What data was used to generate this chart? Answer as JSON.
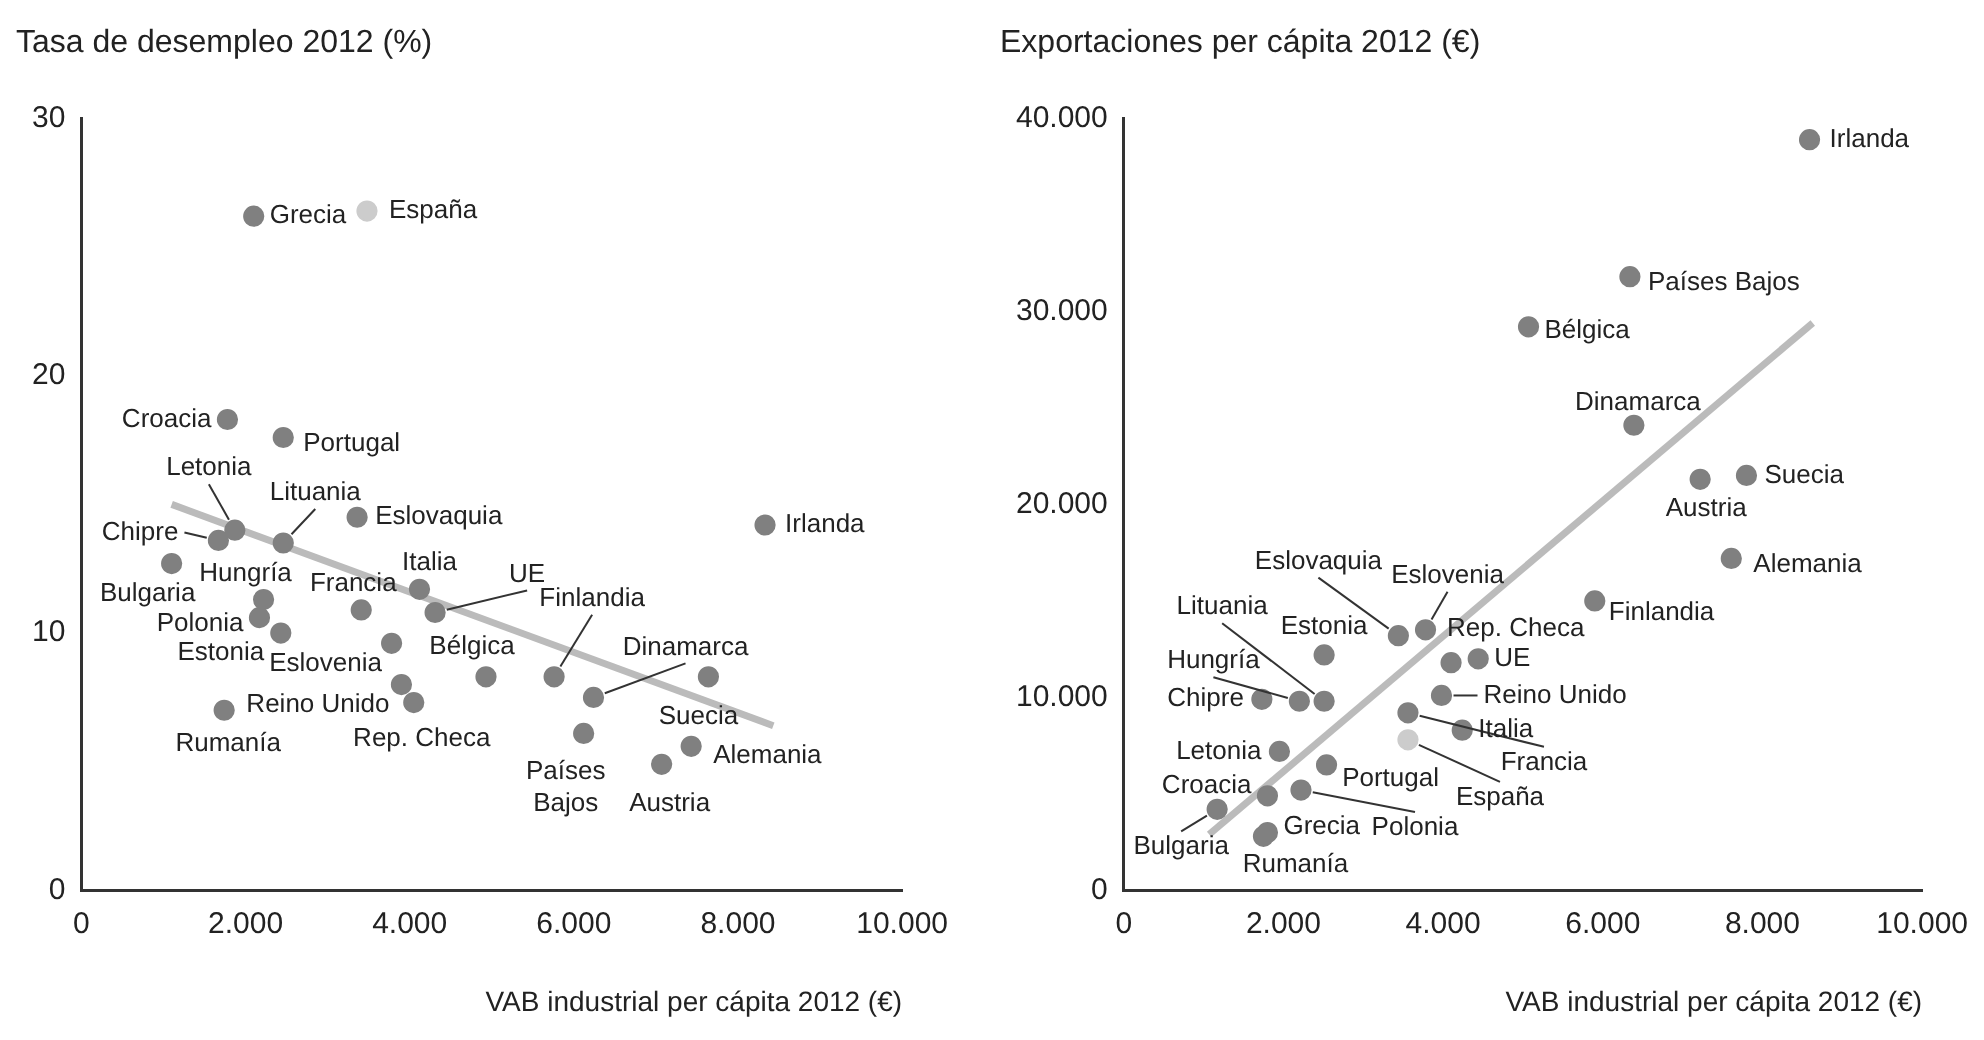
{
  "chart_data": [
    {
      "type": "scatter",
      "title": "Tasa de desempleo 2012 (%)",
      "xlabel": "VAB industrial per cápita 2012 (€)",
      "xlim": [
        0,
        10000
      ],
      "xticks": [
        0,
        {
          "value": 2000,
          "label": "2.000"
        },
        {
          "value": 4000,
          "label": "4.000"
        },
        {
          "value": 6000,
          "label": "6.000"
        },
        {
          "value": 8000,
          "label": "8.000"
        },
        {
          "value": 10000,
          "label": "10.000"
        }
      ],
      "ylim": [
        0,
        30
      ],
      "yticks": [
        0,
        10,
        20,
        30
      ],
      "grid": false,
      "legend": false,
      "marker": "circle",
      "series": [
        {
          "color": "#808080",
          "x": [
            2100,
            1780,
            2460,
            1870,
            1670,
            2460,
            3360,
            8330,
            1100,
            2220,
            2170,
            2430,
            3410,
            4120,
            4310,
            3780,
            4930,
            5760,
            6240,
            7640,
            7430,
            7070,
            6120,
            3900,
            4050,
            1740
          ],
          "values": [
            26.2,
            18.3,
            17.6,
            14.0,
            13.6,
            13.5,
            14.5,
            14.2,
            12.7,
            11.3,
            10.6,
            10.0,
            10.9,
            11.7,
            10.8,
            9.6,
            8.3,
            8.3,
            7.5,
            8.3,
            5.6,
            4.9,
            6.1,
            8.0,
            7.3,
            7.0
          ]
        },
        {
          "color": "#cccccc",
          "x": [
            3480
          ],
          "values": [
            26.4
          ]
        },
        {
          "type": "line",
          "marker": "none",
          "color": "#bbbbbb",
          "x": [
            1100,
            8430
          ],
          "values": [
            15.0,
            6.4
          ]
        }
      ],
      "annotations": [
        {
          "text": "Grecia",
          "x": 2100,
          "y": 26.2
        },
        {
          "text": "España",
          "x": 3480,
          "y": 26.4
        },
        {
          "text": "Croacia",
          "x": 1780,
          "y": 18.3
        },
        {
          "text": "Portugal",
          "x": 2460,
          "y": 17.6
        },
        {
          "text": "Letonia",
          "x": 1870,
          "y": 14.0
        },
        {
          "text": "Chipre",
          "x": 1670,
          "y": 13.6
        },
        {
          "text": "Lituania",
          "x": 2460,
          "y": 13.5
        },
        {
          "text": "Eslovaquia",
          "x": 3360,
          "y": 14.5
        },
        {
          "text": "Irlanda",
          "x": 8330,
          "y": 14.2
        },
        {
          "text": "Bulgaria",
          "x": 1100,
          "y": 12.7
        },
        {
          "text": "Hungría",
          "x": 2220,
          "y": 11.3
        },
        {
          "text": "Polonia",
          "x": 2170,
          "y": 10.6
        },
        {
          "text": "Estonia",
          "x": 2430,
          "y": 10.0
        },
        {
          "text": "Francia",
          "x": 3410,
          "y": 10.9
        },
        {
          "text": "Italia",
          "x": 4120,
          "y": 11.7
        },
        {
          "text": "UE",
          "x": 4310,
          "y": 10.8
        },
        {
          "text": "Eslovenia",
          "x": 3780,
          "y": 9.6
        },
        {
          "text": "Bélgica",
          "x": 4930,
          "y": 8.3
        },
        {
          "text": "Finlandia",
          "x": 5760,
          "y": 8.3
        },
        {
          "text": "Dinamarca",
          "x": 6240,
          "y": 7.5
        },
        {
          "text": "Suecia",
          "x": 7640,
          "y": 8.3
        },
        {
          "text": "Alemania",
          "x": 7430,
          "y": 5.6
        },
        {
          "text": "Austria",
          "x": 7070,
          "y": 4.9
        },
        {
          "text": "Países Bajos",
          "x": 6120,
          "y": 6.1
        },
        {
          "text": "Reino Unido",
          "x": 3900,
          "y": 8.0
        },
        {
          "text": "Rep. Checa",
          "x": 4050,
          "y": 7.3
        },
        {
          "text": "Rumanía",
          "x": 1740,
          "y": 7.0
        }
      ]
    },
    {
      "type": "scatter",
      "title": "Exportaciones per cápita 2012 (€)",
      "xlabel": "VAB industrial per cápita 2012 (€)",
      "xlim": [
        0,
        10000
      ],
      "xticks": [
        0,
        {
          "value": 2000,
          "label": "2.000"
        },
        {
          "value": 4000,
          "label": "4.000"
        },
        {
          "value": 6000,
          "label": "6.000"
        },
        {
          "value": 8000,
          "label": "8.000"
        },
        {
          "value": 10000,
          "label": "10.000"
        }
      ],
      "ylim": [
        0,
        40000
      ],
      "yticks": [
        0,
        {
          "value": 10000,
          "label": "10.000"
        },
        {
          "value": 20000,
          "label": "20.000"
        },
        {
          "value": 30000,
          "label": "30.000"
        },
        {
          "value": 40000,
          "label": "40.000"
        }
      ],
      "grid": false,
      "legend": false,
      "marker": "circle",
      "series": [
        {
          "color": "#808080",
          "x": [
            8590,
            6340,
            5070,
            6390,
            7220,
            7800,
            7610,
            5900,
            3440,
            3780,
            4100,
            4440,
            2510,
            2200,
            2510,
            1730,
            3980,
            3560,
            4240,
            1950,
            2540,
            2220,
            1800,
            1170,
            1800,
            1750
          ],
          "values": [
            38900,
            31800,
            29200,
            24100,
            21300,
            21500,
            17200,
            15000,
            13200,
            13500,
            11800,
            12000,
            12200,
            9800,
            9800,
            9900,
            10100,
            9200,
            8300,
            7200,
            6500,
            5200,
            4900,
            4200,
            3000,
            2800
          ]
        },
        {
          "color": "#cccccc",
          "x": [
            3560
          ],
          "values": [
            7800
          ]
        },
        {
          "type": "line",
          "marker": "none",
          "color": "#bbbbbb",
          "x": [
            1070,
            8630
          ],
          "values": [
            2900,
            29400
          ]
        }
      ],
      "annotations": [
        {
          "text": "Irlanda",
          "x": 8590,
          "y": 38900
        },
        {
          "text": "Países Bajos",
          "x": 6340,
          "y": 31800
        },
        {
          "text": "Bélgica",
          "x": 5070,
          "y": 29200
        },
        {
          "text": "Dinamarca",
          "x": 6390,
          "y": 24100
        },
        {
          "text": "Austria",
          "x": 7220,
          "y": 21300
        },
        {
          "text": "Suecia",
          "x": 7800,
          "y": 21500
        },
        {
          "text": "Alemania",
          "x": 7610,
          "y": 17200
        },
        {
          "text": "Finlandia",
          "x": 5900,
          "y": 15000
        },
        {
          "text": "Eslovaquia",
          "x": 3440,
          "y": 13200
        },
        {
          "text": "Eslovenia",
          "x": 3780,
          "y": 13500
        },
        {
          "text": "Rep. Checa",
          "x": 4100,
          "y": 11800
        },
        {
          "text": "UE",
          "x": 4440,
          "y": 12000
        },
        {
          "text": "Estonia",
          "x": 2510,
          "y": 12200
        },
        {
          "text": "Hungría",
          "x": 2200,
          "y": 9800
        },
        {
          "text": "Lituania",
          "x": 2510,
          "y": 9800
        },
        {
          "text": "Chipre",
          "x": 1730,
          "y": 9900
        },
        {
          "text": "Reino Unido",
          "x": 3980,
          "y": 10100
        },
        {
          "text": "Francia",
          "x": 3560,
          "y": 9200
        },
        {
          "text": "Italia",
          "x": 4240,
          "y": 8300
        },
        {
          "text": "España",
          "x": 3560,
          "y": 7800
        },
        {
          "text": "Letonia",
          "x": 1950,
          "y": 7200
        },
        {
          "text": "Portugal",
          "x": 2540,
          "y": 6500
        },
        {
          "text": "Polonia",
          "x": 2220,
          "y": 5200
        },
        {
          "text": "Croacia",
          "x": 1800,
          "y": 4900
        },
        {
          "text": "Bulgaria",
          "x": 1170,
          "y": 4200
        },
        {
          "text": "Grecia",
          "x": 1800,
          "y": 3000
        },
        {
          "text": "Rumanía",
          "x": 1750,
          "y": 2800
        }
      ]
    }
  ]
}
